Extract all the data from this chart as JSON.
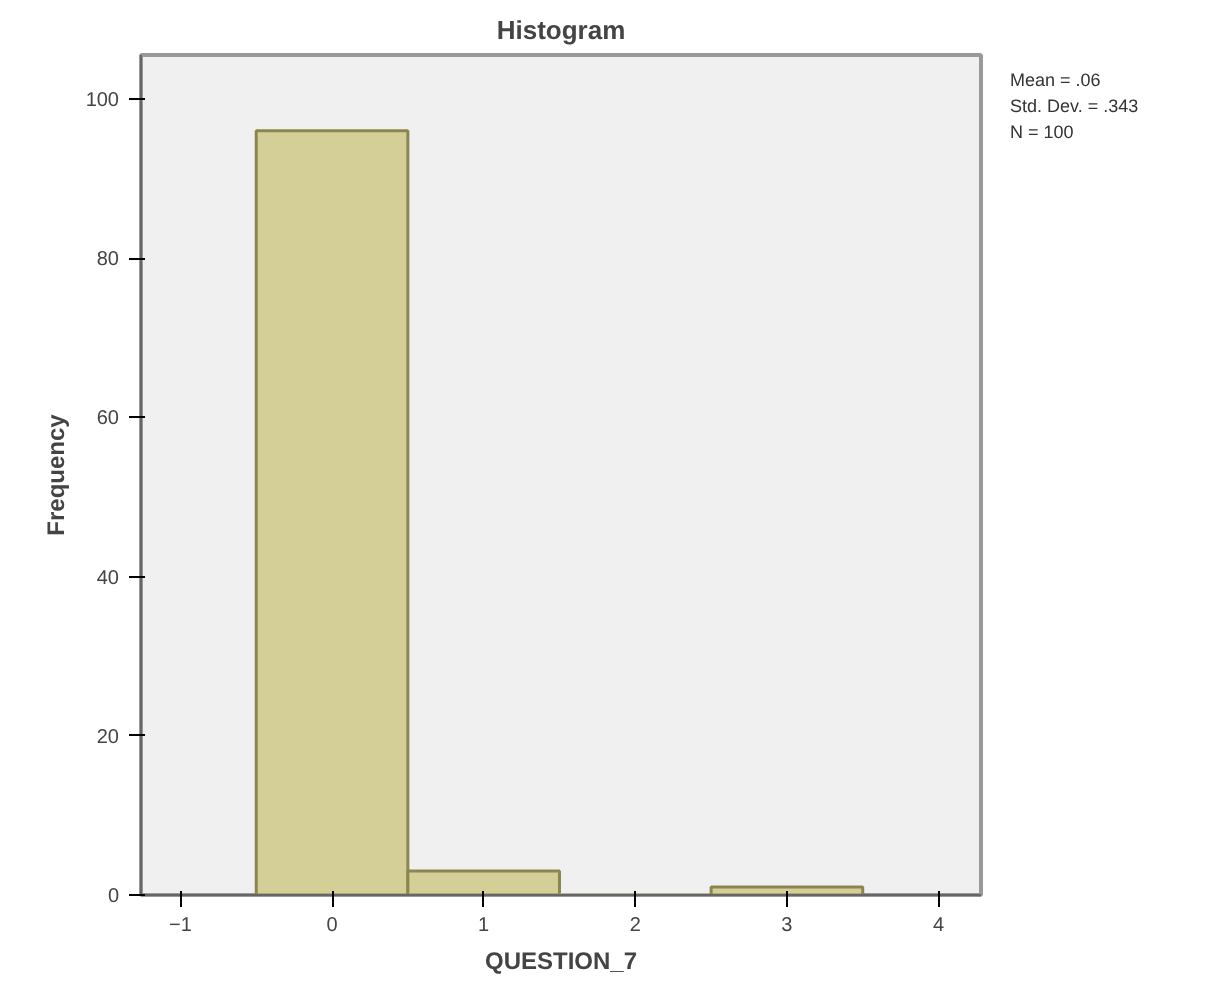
{
  "chart_data": {
    "type": "histogram",
    "title": "Histogram",
    "xlabel": "QUESTION_7",
    "ylabel": "Frequency",
    "bins": [
      -0.5,
      0.5,
      1.5,
      2.5,
      3.5
    ],
    "values": [
      96,
      3,
      0,
      1
    ],
    "color": "#d3cf96",
    "xlim": [
      -1.26,
      4.28
    ],
    "xticks": [
      -1,
      0,
      1,
      2,
      3,
      4
    ],
    "ylim": [
      0,
      105.5
    ],
    "yticks": [
      0,
      20,
      40,
      60,
      80,
      100
    ],
    "grid": false,
    "annotations": [
      "Mean = .06",
      "Std. Dev. = .343",
      "N = 100"
    ]
  }
}
